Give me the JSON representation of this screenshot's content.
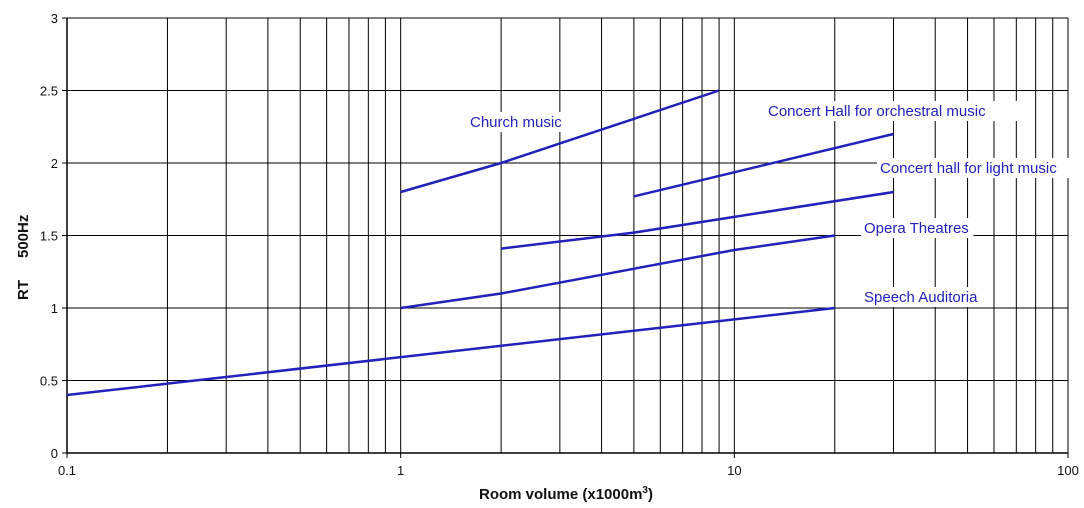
{
  "chart_data": {
    "type": "line",
    "title": "",
    "xlabel": "Room volume (x1000m",
    "xlabel_sup": "3",
    "xlabel_suffix": ")",
    "ylabel_main": "RT",
    "ylabel_sub": "500Hz",
    "x_scale": "log",
    "xlim": [
      0.1,
      100
    ],
    "ylim": [
      0,
      3
    ],
    "x_ticks": [
      0.1,
      1,
      10,
      100
    ],
    "x_tick_labels": [
      "0.1",
      "1",
      "10",
      "100"
    ],
    "y_ticks": [
      0,
      0.5,
      1,
      1.5,
      2,
      2.5,
      3
    ],
    "y_tick_labels": [
      "0",
      "0.5",
      "1",
      "1.5",
      "2",
      "2.5",
      "3"
    ],
    "grid": true,
    "line_color": "#2222bb",
    "series": [
      {
        "name": "Church music",
        "x": [
          1,
          2,
          9
        ],
        "y": [
          1.8,
          2.0,
          2.5
        ]
      },
      {
        "name": "Concert Hall for orchestral music",
        "x": [
          5,
          30
        ],
        "y": [
          1.77,
          2.2
        ]
      },
      {
        "name": "Concert hall for light music",
        "x": [
          2,
          5,
          30
        ],
        "y": [
          1.41,
          1.52,
          1.8
        ]
      },
      {
        "name": "Opera Theatres",
        "x": [
          1,
          2,
          10,
          20
        ],
        "y": [
          1.0,
          1.1,
          1.4,
          1.5
        ]
      },
      {
        "name": "Speech Auditoria",
        "x": [
          0.1,
          20
        ],
        "y": [
          0.4,
          1.0
        ]
      }
    ]
  }
}
